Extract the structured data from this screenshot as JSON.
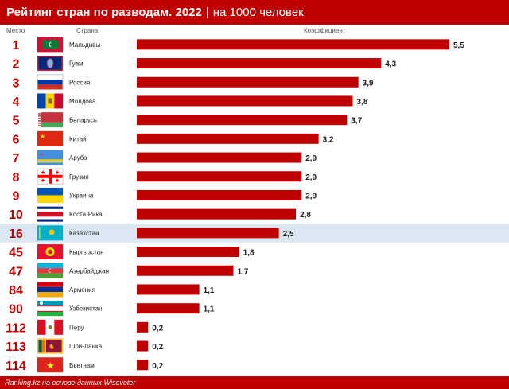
{
  "header": {
    "title": "Рейтинг стран по разводам. 2022",
    "subtitle": "на 1000 человек"
  },
  "columns": {
    "rank": "Место",
    "country": "Страна",
    "coef": "Коэффициент"
  },
  "footer": {
    "source": "Ranking.kz на основе данных Wisevoter"
  },
  "colors": {
    "brand": "#c00000",
    "bar": "#c00000",
    "highlight_row": "#dbe8f3"
  },
  "chart_data": {
    "type": "bar",
    "orientation": "horizontal",
    "categories": [
      "Мальдивы",
      "Гуам",
      "Россия",
      "Молдова",
      "Беларусь",
      "Китай",
      "Аруба",
      "Грузия",
      "Украина",
      "Коста-Рика",
      "Казахстан",
      "Кыргызстан",
      "Азербайджан",
      "Армения",
      "Узбекистан",
      "Перу",
      "Шри-Ланка",
      "Вьетнам"
    ],
    "ranks": [
      "1",
      "2",
      "3",
      "4",
      "5",
      "6",
      "7",
      "8",
      "9",
      "10",
      "16",
      "45",
      "47",
      "84",
      "90",
      "112",
      "113",
      "114"
    ],
    "values": [
      5.5,
      4.3,
      3.9,
      3.8,
      3.7,
      3.2,
      2.9,
      2.9,
      2.9,
      2.8,
      2.5,
      1.8,
      1.7,
      1.1,
      1.1,
      0.2,
      0.2,
      0.2
    ],
    "labels": [
      "5,5",
      "4,3",
      "3,9",
      "3,8",
      "3,7",
      "3,2",
      "2,9",
      "2,9",
      "2,9",
      "2,8",
      "2,5",
      "1,8",
      "1,7",
      "1,1",
      "1,1",
      "0,2",
      "0,2",
      "0,2"
    ],
    "flags": [
      "flag-maldives",
      "flag-guam",
      "flag-russia",
      "flag-moldova",
      "flag-belarus",
      "flag-china",
      "flag-aruba",
      "flag-georgia",
      "flag-ukraine",
      "flag-costa-rica",
      "flag-kazakhstan",
      "flag-kyrgyzstan",
      "flag-azerbaijan",
      "flag-armenia",
      "flag-uzbekistan",
      "flag-peru",
      "flag-sri-lanka",
      "flag-vietnam"
    ],
    "highlight": "Казахстан",
    "xlim": [
      0,
      5.5
    ]
  }
}
